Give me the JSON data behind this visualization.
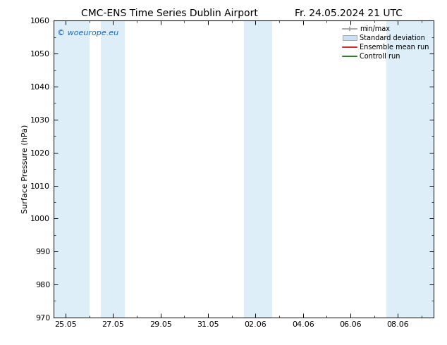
{
  "title_left": "CMC-ENS Time Series Dublin Airport",
  "title_right": "Fr. 24.05.2024 21 UTC",
  "ylabel": "Surface Pressure (hPa)",
  "ylim": [
    970,
    1060
  ],
  "yticks": [
    970,
    980,
    990,
    1000,
    1010,
    1020,
    1030,
    1040,
    1050,
    1060
  ],
  "xtick_labels": [
    "25.05",
    "27.05",
    "29.05",
    "31.05",
    "02.06",
    "04.06",
    "06.06",
    "08.06"
  ],
  "xtick_positions": [
    0,
    2,
    4,
    6,
    8,
    10,
    12,
    14
  ],
  "x_min": -0.5,
  "x_max": 15.5,
  "shaded_bands": [
    {
      "x_start": -0.5,
      "x_end": 1.0,
      "color": "#ddeef9"
    },
    {
      "x_start": 1.5,
      "x_end": 2.5,
      "color": "#ddeef9"
    },
    {
      "x_start": 7.5,
      "x_end": 8.7,
      "color": "#ddeef9"
    },
    {
      "x_start": 13.5,
      "x_end": 15.5,
      "color": "#ddeef9"
    }
  ],
  "watermark_text": "© woeurope.eu",
  "watermark_color": "#1565c0",
  "legend_entries": [
    {
      "label": "min/max",
      "color": "#999999",
      "type": "errorbar"
    },
    {
      "label": "Standard deviation",
      "color": "#cce0f5",
      "type": "bar"
    },
    {
      "label": "Ensemble mean run",
      "color": "#cc0000",
      "type": "line"
    },
    {
      "label": "Controll run",
      "color": "#006600",
      "type": "line"
    }
  ],
  "bg_color": "#ffffff",
  "plot_bg_color": "#ffffff",
  "title_fontsize": 10,
  "axis_fontsize": 8,
  "tick_fontsize": 8,
  "legend_fontsize": 7,
  "watermark_fontsize": 8
}
